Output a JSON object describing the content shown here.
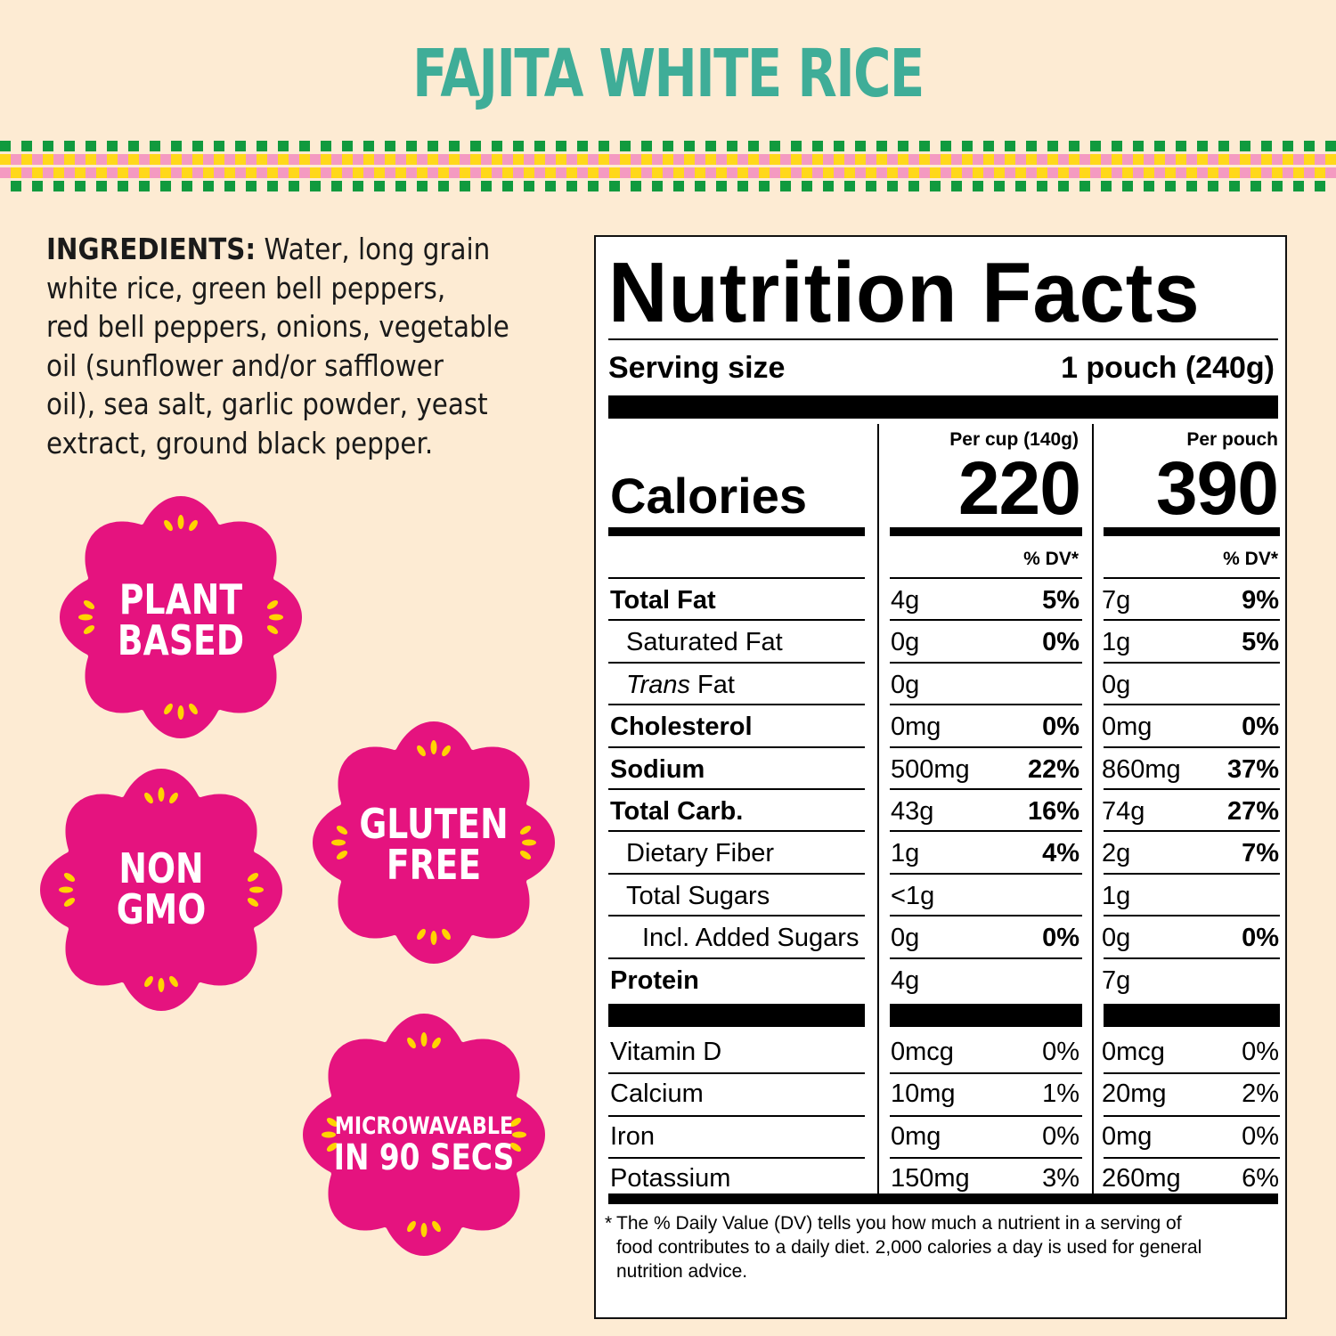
{
  "title": "FAJITA WHITE RICE",
  "colors": {
    "background": "#fdebd3",
    "title": "#3fad98",
    "badge": "#e5137f",
    "badge_accent": "#ffd400",
    "checker_green": "#119a3e",
    "checker_yellow": "#ffd81a",
    "checker_pink": "#f49ac1"
  },
  "ingredients": {
    "label": "INGREDIENTS:",
    "lines": [
      " Water, long grain",
      "white rice, green bell peppers,",
      "red bell peppers, onions, vegetable",
      "oil (sunflower and/or safflower",
      "oil), sea salt, garlic powder, yeast",
      "extract, ground black pepper."
    ]
  },
  "badges": [
    {
      "lines": [
        "PLANT",
        "BASED"
      ]
    },
    {
      "lines": [
        "NON",
        "GMO"
      ]
    },
    {
      "lines": [
        "GLUTEN",
        "FREE"
      ]
    },
    {
      "lines": [
        "MICROWAVABLE",
        "IN 90 SECS"
      ]
    }
  ],
  "nutrition": {
    "heading": "Nutrition Facts",
    "serving_label": "Serving size",
    "serving_value": "1 pouch (240g)",
    "col1_header": "Per cup (140g)",
    "col2_header": "Per pouch",
    "calories_label": "Calories",
    "calories_col1": "220",
    "calories_col2": "390",
    "dv_header": "% DV*",
    "rows": [
      {
        "name": "Total Fat",
        "v1": "4g",
        "d1": "5%",
        "v2": "7g",
        "d2": "9%"
      },
      {
        "name": "Saturated Fat",
        "v1": "0g",
        "d1": "0%",
        "v2": "1g",
        "d2": "5%"
      },
      {
        "name_italic": "Trans",
        "name_rest": " Fat",
        "v1": "0g",
        "d1": "",
        "v2": "0g",
        "d2": ""
      },
      {
        "name": "Cholesterol",
        "v1": "0mg",
        "d1": "0%",
        "v2": "0mg",
        "d2": "0%"
      },
      {
        "name": "Sodium",
        "v1": "500mg",
        "d1": "22%",
        "v2": "860mg",
        "d2": "37%"
      },
      {
        "name": "Total Carb.",
        "v1": "43g",
        "d1": "16%",
        "v2": "74g",
        "d2": "27%"
      },
      {
        "name": "Dietary Fiber",
        "v1": "1g",
        "d1": "4%",
        "v2": "2g",
        "d2": "7%"
      },
      {
        "name": "Total Sugars",
        "v1": "<1g",
        "d1": "",
        "v2": "1g",
        "d2": ""
      },
      {
        "name": "Incl. Added Sugars",
        "v1": "0g",
        "d1": "0%",
        "v2": "0g",
        "d2": "0%"
      },
      {
        "name": "Protein",
        "v1": "4g",
        "d1": "",
        "v2": "7g",
        "d2": ""
      }
    ],
    "vitamins": [
      {
        "name": "Vitamin D",
        "v1": "0mcg",
        "d1": "0%",
        "v2": "0mcg",
        "d2": "0%"
      },
      {
        "name": "Calcium",
        "v1": "10mg",
        "d1": "1%",
        "v2": "20mg",
        "d2": "2%"
      },
      {
        "name": "Iron",
        "v1": "0mg",
        "d1": "0%",
        "v2": "0mg",
        "d2": "0%"
      },
      {
        "name": "Potassium",
        "v1": "150mg",
        "d1": "3%",
        "v2": "260mg",
        "d2": "6%"
      }
    ],
    "footnote_star": "*",
    "footnote_lines": [
      "The % Daily Value (DV) tells you how much a nutrient in a serving of",
      "food contributes to a daily diet. 2,000 calories a day is used for general",
      "nutrition advice."
    ]
  }
}
